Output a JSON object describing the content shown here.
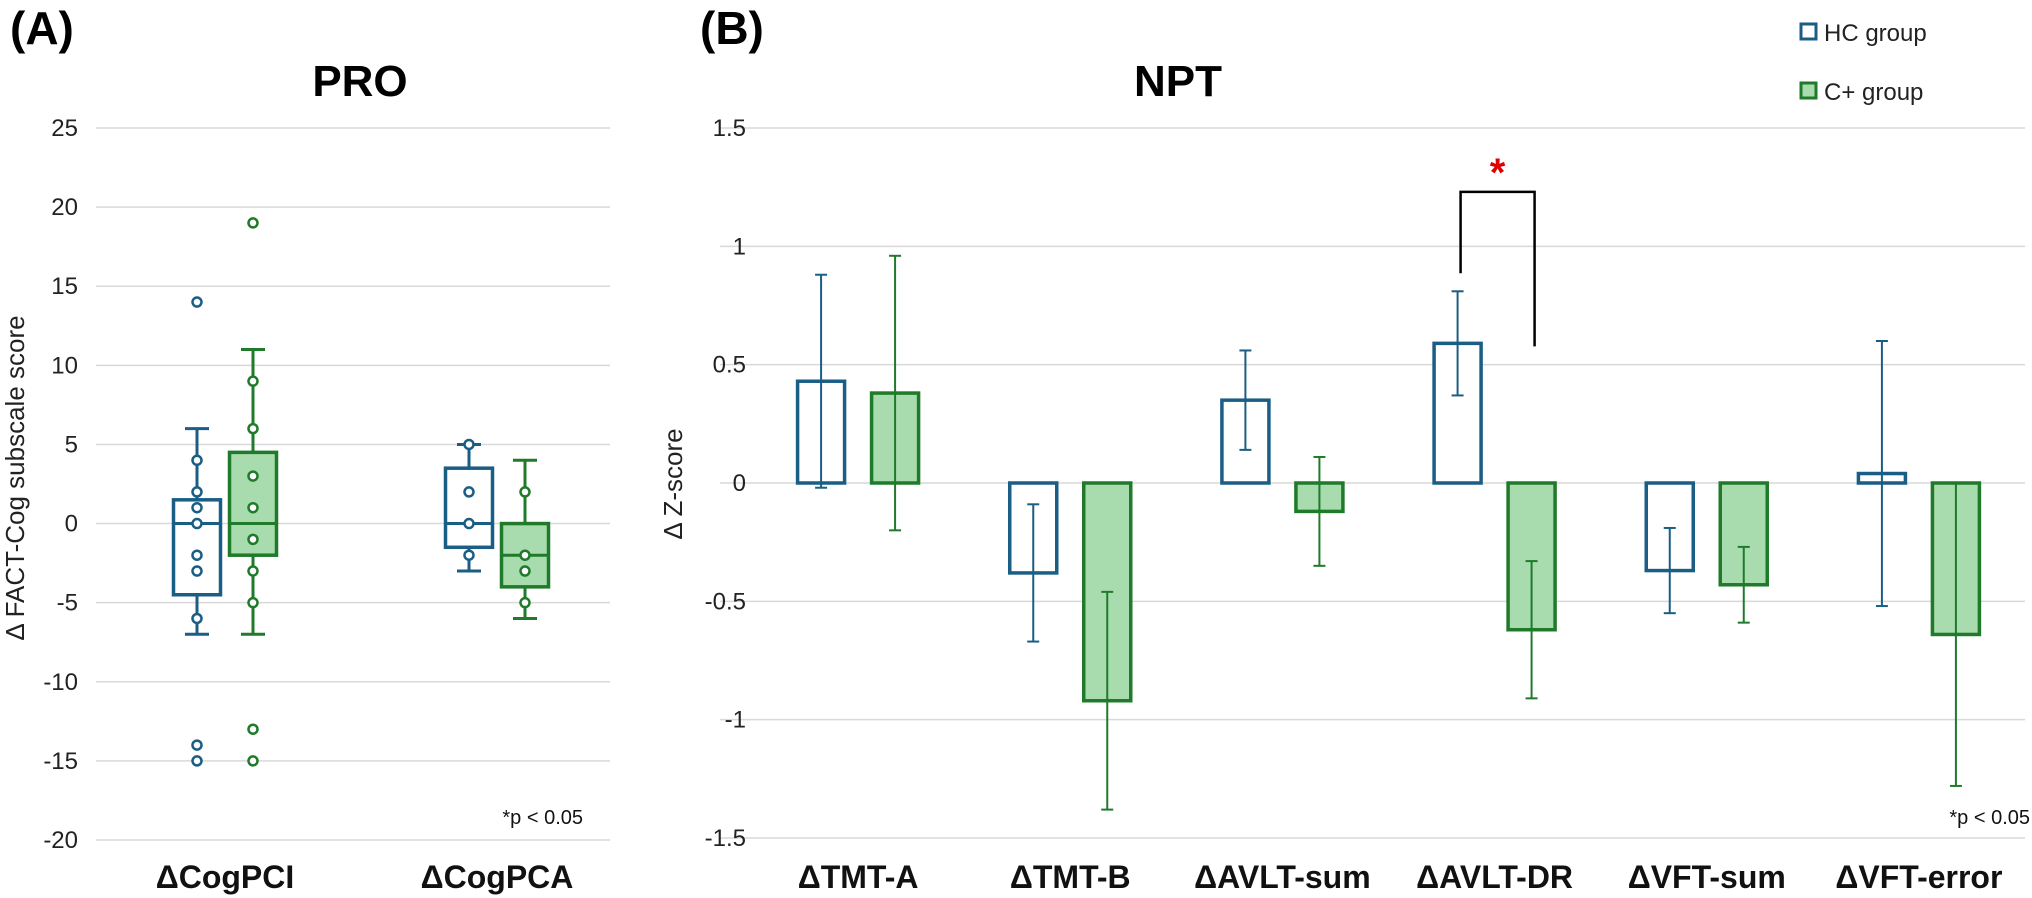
{
  "panels": {
    "a_label": "(A)",
    "b_label": "(B)"
  },
  "colors": {
    "hc": "#1a5e85",
    "cplus": "#1f7a2a",
    "cplus_fill": "#a8dcae",
    "grid": "#d9d9d9",
    "sig": "#e00000"
  },
  "chart_data": [
    {
      "id": "pro",
      "type": "box",
      "title": "PRO",
      "ylabel": "Δ FACT-Cog subscale score",
      "ylim": [
        -20,
        25
      ],
      "yticks": [
        25,
        20,
        15,
        10,
        5,
        0,
        -5,
        -10,
        -15,
        -20
      ],
      "ytick_labels": [
        "25",
        "20",
        "15",
        "10",
        "5",
        "0",
        "-5",
        "-10",
        "-15",
        "-20"
      ],
      "categories": [
        "ΔCogPCI",
        "ΔCogPCA"
      ],
      "note": "*p < 0.05",
      "series": [
        {
          "name": "HC group",
          "boxes": [
            {
              "q1": -4.5,
              "median": 0,
              "q3": 1.5,
              "whisker_low": -7,
              "whisker_high": 6,
              "points": [
                4,
                2,
                1,
                0,
                -2,
                -3,
                -6
              ],
              "outliers": [
                14,
                -14,
                -15
              ]
            },
            {
              "q1": -1.5,
              "median": 0,
              "q3": 3.5,
              "whisker_low": -3,
              "whisker_high": 5,
              "points": [
                5,
                2,
                0,
                -2
              ],
              "outliers": []
            }
          ]
        },
        {
          "name": "C+ group",
          "boxes": [
            {
              "q1": -2,
              "median": 0,
              "q3": 4.5,
              "whisker_low": -7,
              "whisker_high": 11,
              "points": [
                9,
                6,
                3,
                1,
                -1,
                -3,
                -5
              ],
              "outliers": [
                19,
                -13,
                -15
              ]
            },
            {
              "q1": -4,
              "median": -2,
              "q3": 0,
              "whisker_low": -6,
              "whisker_high": 4,
              "points": [
                2,
                -2,
                -3,
                -5
              ],
              "outliers": []
            }
          ]
        }
      ]
    },
    {
      "id": "npt",
      "type": "bar",
      "title": "NPT",
      "ylabel": "Δ Z-score",
      "ylim": [
        -1.5,
        1.5
      ],
      "yticks": [
        1.5,
        1,
        0.5,
        0,
        -0.5,
        -1,
        -1.5
      ],
      "ytick_labels": [
        "1.5",
        "1",
        "0.5",
        "0",
        "-0.5",
        "-1",
        "-1.5"
      ],
      "categories": [
        "ΔTMT-A",
        "ΔTMT-B",
        "ΔAVLT-sum",
        "ΔAVLT-DR",
        "ΔVFT-sum",
        "ΔVFT-error"
      ],
      "legend": [
        "HC group",
        "C+ group"
      ],
      "note": "*p < 0.05",
      "significance": {
        "category": "ΔAVLT-DR",
        "marker": "*",
        "y": 1.23
      },
      "series": [
        {
          "name": "HC group",
          "values": [
            0.43,
            -0.38,
            0.35,
            0.59,
            -0.37,
            0.04
          ],
          "err_low": [
            -0.02,
            -0.67,
            0.14,
            0.37,
            -0.55,
            -0.52
          ],
          "err_high": [
            0.88,
            -0.09,
            0.56,
            0.81,
            -0.19,
            0.6
          ]
        },
        {
          "name": "C+ group",
          "values": [
            0.38,
            -0.92,
            -0.12,
            -0.62,
            -0.43,
            -0.64
          ],
          "err_low": [
            -0.2,
            -1.38,
            -0.35,
            -0.91,
            -0.59,
            -1.28
          ],
          "err_high": [
            0.96,
            -0.46,
            0.11,
            -0.33,
            -0.27,
            0.0
          ]
        }
      ]
    }
  ]
}
